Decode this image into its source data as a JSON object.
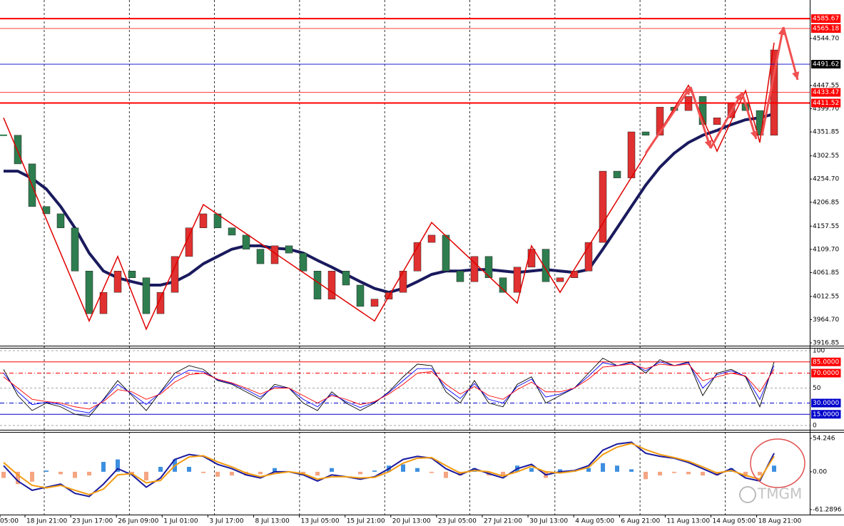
{
  "chart_data": [
    {
      "type": "candlestick",
      "ylim": [
        3911,
        4624
      ],
      "yticks": [
        3916.85,
        {
          "value": 3964.7,
          "label": "3964.70"
        },
        4012.55,
        4061.85,
        {
          "value": 4109.7,
          "label": "4109.70"
        },
        4157.55,
        4206.85,
        {
          "value": 4254.7,
          "label": "4254.70"
        },
        4302.55,
        4351.85,
        {
          "value": 4399.7,
          "label": "4399.70"
        },
        4447.55,
        {
          "value": 4544.7,
          "label": "4544.70"
        }
      ],
      "levels": [
        {
          "value": 4585.67,
          "color": "#ff0000",
          "box": "#ff0000",
          "style": "thick"
        },
        {
          "value": 4565.18,
          "color": "#ff0000",
          "box": "#ff0000",
          "style": "thin"
        },
        {
          "value": 4491.62,
          "color": "#0000cc",
          "box": "#000000",
          "style": "thin"
        },
        {
          "value": 4433.47,
          "color": "#ff0000",
          "box": "#ff0000",
          "style": "thin"
        },
        {
          "value": 4411.52,
          "color": "#ff0000",
          "box": "#ff0000",
          "style": "thick"
        }
      ],
      "close": {
        "up_color": "#e03030",
        "down_color": "#2e7d4f",
        "values": [
          4345,
          4286,
          4198,
          4183,
          4154,
          4065,
          3977,
          4021,
          4065,
          4051,
          3977,
          4021,
          4095,
          4154,
          4183,
          4154,
          4139,
          4110,
          4080,
          4117,
          4102,
          4065,
          4007,
          4065,
          4036,
          3992,
          4007,
          4021,
          4065,
          4124,
          4139,
          4065,
          4043,
          4095,
          4051,
          4021,
          4073,
          4110,
          4043,
          4051,
          4065,
          4124,
          4271,
          4257,
          4352,
          4345,
          4403,
          4396,
          4425,
          4367,
          4381,
          4411,
          4396,
          4345,
          4521
        ]
      },
      "moving_average": {
        "color": "#1a1a5e",
        "values": [
          4271,
          4271,
          4256,
          4234,
          4198,
          4154,
          4102,
          4065,
          4051,
          4043,
          4036,
          4036,
          4043,
          4058,
          4080,
          4095,
          4110,
          4117,
          4117,
          4112,
          4110,
          4102,
          4087,
          4073,
          4058,
          4043,
          4029,
          4021,
          4029,
          4043,
          4058,
          4065,
          4065,
          4068,
          4068,
          4065,
          4062,
          4065,
          4068,
          4065,
          4062,
          4068,
          4110,
          4154,
          4198,
          4242,
          4279,
          4308,
          4330,
          4345,
          4355,
          4367,
          4377,
          4381,
          4389
        ]
      },
      "zigzag": {
        "color": "#e00000",
        "x": [
          0,
          6,
          8,
          10,
          14,
          26,
          30,
          36,
          37,
          39,
          48,
          50,
          52,
          53,
          54
        ],
        "values": [
          4381,
          3962,
          4095,
          3945,
          4202,
          3962,
          4165,
          3999,
          4117,
          4021,
          4448,
          4312,
          4437,
          4330,
          4536
        ]
      },
      "time_labels": [
        "05:00",
        "18 Jun 21:00",
        "23 Jun 17:00",
        "26 Jun 09:00",
        "1 Jul 01:00",
        "3 Jul 17:00",
        "8 Jul 13:00",
        "13 Jul 05:00",
        "15 Jul 21:00",
        "20 Jul 13:00",
        "23 Jul 05:00",
        "27 Jul 21:00",
        "30 Jul 13:00",
        "4 Aug 05:00",
        "6 Aug 21:00",
        "11 Aug 13:00",
        "14 Aug 05:00",
        "18 Aug 21:00"
      ]
    },
    {
      "type": "oscillator",
      "ylim": [
        0,
        100
      ],
      "yticks": [
        0,
        50,
        100
      ],
      "grid": true,
      "levels": [
        {
          "value": 85,
          "label": "85.0000",
          "color": "#ff0000",
          "style": "solid"
        },
        {
          "value": 70,
          "label": "70.0000",
          "color": "#ff0000",
          "style": "dashdot"
        },
        {
          "value": 30,
          "label": "30.0000",
          "color": "#0000cc",
          "style": "dashdot"
        },
        {
          "value": 15,
          "label": "15.0000",
          "color": "#0000cc",
          "style": "solid"
        }
      ],
      "series": [
        {
          "color": "#000000",
          "values": [
            75,
            40,
            20,
            30,
            25,
            15,
            12,
            35,
            60,
            40,
            20,
            45,
            70,
            80,
            75,
            60,
            55,
            45,
            35,
            55,
            50,
            30,
            20,
            45,
            30,
            20,
            30,
            45,
            65,
            82,
            80,
            45,
            30,
            60,
            30,
            25,
            55,
            65,
            30,
            40,
            50,
            70,
            90,
            80,
            85,
            70,
            88,
            80,
            85,
            40,
            70,
            75,
            65,
            25,
            85
          ]
        },
        {
          "color": "#0000ff",
          "values": [
            70,
            45,
            28,
            31,
            28,
            20,
            17,
            34,
            55,
            42,
            28,
            44,
            64,
            74,
            72,
            61,
            56,
            48,
            38,
            52,
            50,
            35,
            25,
            42,
            32,
            24,
            31,
            44,
            60,
            76,
            76,
            50,
            36,
            56,
            35,
            30,
            52,
            62,
            38,
            42,
            50,
            66,
            84,
            80,
            84,
            73,
            85,
            80,
            84,
            50,
            68,
            73,
            66,
            35,
            80
          ]
        },
        {
          "color": "#ff0000",
          "values": [
            65,
            50,
            35,
            32,
            30,
            25,
            22,
            32,
            48,
            45,
            35,
            42,
            58,
            68,
            70,
            62,
            57,
            50,
            42,
            50,
            50,
            40,
            30,
            40,
            35,
            28,
            32,
            42,
            55,
            70,
            72,
            55,
            42,
            52,
            40,
            35,
            48,
            58,
            45,
            45,
            50,
            62,
            78,
            80,
            82,
            76,
            82,
            80,
            82,
            60,
            65,
            70,
            66,
            45,
            75
          ]
        }
      ]
    },
    {
      "type": "macd",
      "ylim": [
        -69.4,
        64.6
      ],
      "yticks": [
        54.246,
        {
          "value": 0,
          "label": "0.00"
        },
        -61.2896
      ],
      "histogram": {
        "up_color": "#3d8fe0",
        "down_color": "#f4a582",
        "values": [
          -10,
          -20,
          -16,
          2,
          -4,
          -10,
          -6,
          16,
          20,
          -4,
          -14,
          8,
          20,
          8,
          -2,
          -8,
          -6,
          -6,
          -4,
          6,
          0,
          -4,
          -6,
          6,
          0,
          -4,
          2,
          10,
          12,
          6,
          -2,
          -10,
          -6,
          6,
          -6,
          -6,
          10,
          6,
          -10,
          4,
          2,
          6,
          14,
          10,
          4,
          -12,
          -6,
          -2,
          -4,
          -6,
          -6,
          6,
          -8,
          -6,
          10
        ]
      },
      "series": [
        {
          "color": "#1a1aa0",
          "values": [
            10,
            -15,
            -30,
            -25,
            -20,
            -35,
            -40,
            -20,
            5,
            -5,
            -25,
            -10,
            20,
            28,
            25,
            12,
            5,
            -5,
            -10,
            0,
            0,
            -5,
            -15,
            -5,
            -8,
            -12,
            -8,
            5,
            20,
            25,
            22,
            5,
            -5,
            5,
            -3,
            -10,
            5,
            12,
            -5,
            0,
            2,
            10,
            35,
            45,
            48,
            30,
            25,
            22,
            15,
            5,
            -5,
            5,
            -10,
            -15,
            30
          ]
        },
        {
          "color": "#f39c12",
          "values": [
            15,
            -5,
            -22,
            -26,
            -22,
            -30,
            -37,
            -28,
            -5,
            -3,
            -18,
            -14,
            10,
            24,
            26,
            16,
            8,
            -2,
            -8,
            -3,
            0,
            -3,
            -12,
            -8,
            -8,
            -10,
            -9,
            0,
            14,
            22,
            23,
            10,
            -2,
            2,
            0,
            -7,
            0,
            9,
            0,
            -2,
            1,
            7,
            28,
            40,
            46,
            36,
            28,
            23,
            17,
            8,
            -2,
            2,
            -6,
            -12,
            25
          ]
        }
      ]
    }
  ],
  "watermark": "TMGM"
}
